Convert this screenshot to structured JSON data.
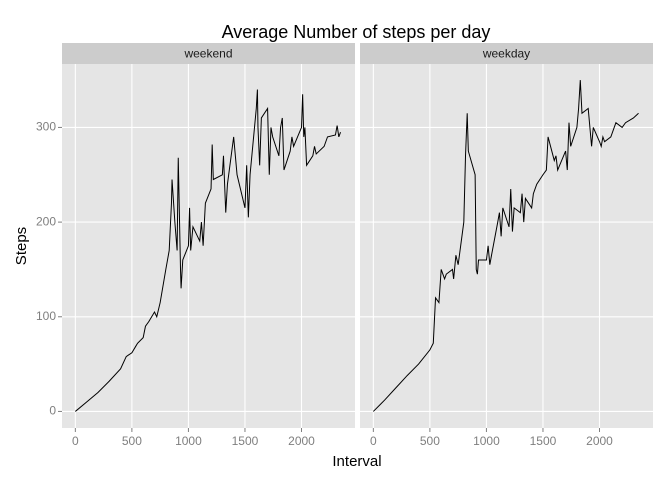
{
  "title": "Average Number of steps per day",
  "x_label": "Interval",
  "y_label": "Steps",
  "chart_data": [
    {
      "type": "line",
      "title": "weekend",
      "x": [
        0,
        100,
        200,
        300,
        400,
        450,
        500,
        530,
        550,
        600,
        620,
        650,
        700,
        720,
        750,
        800,
        830,
        850,
        855,
        880,
        900,
        910,
        930,
        935,
        950,
        1000,
        1010,
        1020,
        1040,
        1100,
        1115,
        1130,
        1150,
        1200,
        1210,
        1220,
        1300,
        1310,
        1330,
        1345,
        1400,
        1430,
        1500,
        1515,
        1530,
        1545,
        1600,
        1610,
        1615,
        1630,
        1645,
        1700,
        1715,
        1730,
        1745,
        1800,
        1815,
        1830,
        1845,
        1900,
        1915,
        1930,
        2000,
        2010,
        2020,
        2030,
        2045,
        2100,
        2115,
        2130,
        2200,
        2230,
        2300,
        2315,
        2330,
        2345
      ],
      "series": [
        {
          "color": "#000000",
          "values": [
            0,
            10,
            20,
            32,
            45,
            58,
            62,
            68,
            72,
            78,
            90,
            95,
            105,
            100,
            115,
            150,
            170,
            220,
            245,
            200,
            170,
            268,
            150,
            130,
            160,
            175,
            215,
            170,
            195,
            180,
            200,
            175,
            220,
            235,
            282,
            245,
            250,
            270,
            210,
            240,
            290,
            250,
            215,
            260,
            205,
            250,
            320,
            340,
            300,
            260,
            310,
            320,
            250,
            300,
            290,
            270,
            300,
            310,
            255,
            275,
            290,
            280,
            300,
            335,
            290,
            300,
            260,
            270,
            280,
            272,
            280,
            290,
            292,
            302,
            290,
            295
          ]
        }
      ],
      "xlim": [
        -118,
        2473
      ],
      "ylim": [
        -17.5,
        367
      ],
      "xticks": [
        0,
        500,
        1000,
        1500,
        2000
      ],
      "yticks": [
        0,
        100,
        200,
        300
      ],
      "grid": true
    },
    {
      "type": "line",
      "title": "weekday",
      "x": [
        0,
        100,
        200,
        300,
        400,
        500,
        530,
        550,
        580,
        600,
        630,
        645,
        700,
        710,
        730,
        750,
        800,
        815,
        830,
        840,
        900,
        910,
        920,
        930,
        1000,
        1015,
        1030,
        1045,
        1100,
        1115,
        1130,
        1145,
        1200,
        1215,
        1230,
        1245,
        1300,
        1315,
        1330,
        1345,
        1400,
        1415,
        1430,
        1445,
        1500,
        1530,
        1545,
        1600,
        1615,
        1630,
        1700,
        1715,
        1730,
        1745,
        1800,
        1815,
        1830,
        1845,
        1900,
        1915,
        1930,
        1945,
        2000,
        2015,
        2030,
        2045,
        2100,
        2130,
        2145,
        2200,
        2230,
        2300,
        2345
      ],
      "series": [
        {
          "color": "#000000",
          "values": [
            0,
            12,
            25,
            38,
            50,
            65,
            72,
            120,
            115,
            150,
            140,
            145,
            150,
            140,
            165,
            155,
            200,
            270,
            315,
            275,
            250,
            150,
            145,
            160,
            160,
            175,
            155,
            165,
            200,
            210,
            185,
            215,
            195,
            235,
            190,
            215,
            210,
            230,
            200,
            225,
            215,
            230,
            235,
            240,
            250,
            255,
            290,
            265,
            270,
            255,
            275,
            255,
            305,
            280,
            300,
            320,
            350,
            315,
            320,
            300,
            280,
            300,
            285,
            280,
            290,
            285,
            290,
            300,
            305,
            300,
            305,
            310,
            315
          ]
        }
      ],
      "xlim": [
        -118,
        2473
      ],
      "ylim": [
        -17.5,
        367
      ],
      "xticks": [
        0,
        500,
        1000,
        1500,
        2000
      ],
      "yticks": [
        0,
        100,
        200,
        300
      ],
      "grid": true
    }
  ]
}
